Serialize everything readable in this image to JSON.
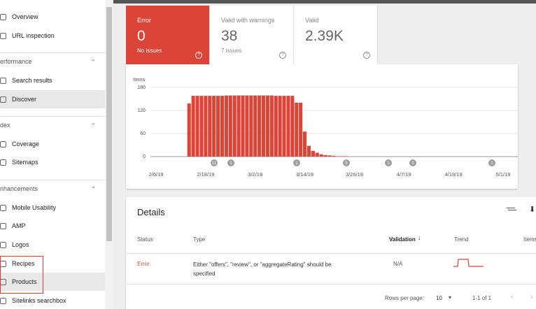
{
  "sidebar": {
    "top": [
      "Overview",
      "URL inspection"
    ],
    "sections": [
      {
        "title": "erformance",
        "items": [
          "Search results",
          "Discover"
        ]
      },
      {
        "title": "dex",
        "items": [
          "Coverage",
          "Sitemaps"
        ]
      },
      {
        "title": "nhancements",
        "items": [
          "Mobile Usability",
          "AMP",
          "Logos",
          "Recipes",
          "Products",
          "Sitelinks searchbox"
        ]
      }
    ]
  },
  "summary": [
    {
      "label": "Error",
      "value": "0",
      "note": "No issues"
    },
    {
      "label": "Valid with warnings",
      "value": "38",
      "note": "7 issues"
    },
    {
      "label": "Valid",
      "value": "2.39K"
    }
  ],
  "chart_data": {
    "type": "bar",
    "y_label": "Items",
    "color": "#db4437",
    "x": [
      "2/14/19",
      "2/15/19",
      "2/16/19",
      "2/17/19",
      "2/18/19",
      "2/19/19",
      "2/20/19",
      "2/21/19",
      "2/22/19",
      "2/23/19",
      "2/24/19",
      "2/25/19",
      "2/26/19",
      "2/27/19",
      "2/28/19",
      "3/1/19",
      "3/2/19",
      "3/3/19",
      "3/4/19",
      "3/5/19",
      "3/6/19",
      "3/7/19",
      "3/8/19",
      "3/9/19",
      "3/10/19",
      "3/11/19",
      "3/12/19",
      "3/13/19",
      "3/14/19",
      "3/15/19",
      "3/16/19",
      "3/17/19",
      "3/18/19",
      "3/19/19",
      "3/20/19",
      "3/21/19",
      "3/22/19",
      "3/23/19",
      "3/24/19"
    ],
    "values": [
      138,
      158,
      158,
      158,
      158,
      158,
      158,
      158,
      158,
      159,
      159,
      159,
      159,
      159,
      159,
      159,
      159,
      159,
      159,
      159,
      159,
      158,
      158,
      158,
      158,
      158,
      140,
      140,
      65,
      28,
      15,
      10,
      6,
      4,
      3,
      2,
      1,
      1,
      1
    ],
    "xlim": [
      "2/6/19",
      "5/1/19"
    ],
    "xticks": [
      "2/6/19",
      "2/18/19",
      "3/2/19",
      "3/14/19",
      "3/26/19",
      "4/7/19",
      "4/19/19",
      "5/1/19"
    ],
    "ylim": [
      0,
      180
    ],
    "yticks": [
      0,
      60,
      120,
      180
    ],
    "grid": true,
    "event_markers": [
      "11",
      "1",
      "1",
      "5",
      "1",
      "1",
      "1"
    ]
  },
  "details": {
    "title": "Details",
    "columns": [
      "Status",
      "Type",
      "Validation",
      "Trend",
      "Items"
    ],
    "rows": [
      [
        "Error",
        "Either \"offers\", \"review\", or \"aggregateRating\" should be specified",
        "N/A"
      ]
    ],
    "footer": {
      "rows_per_page_label": "Rows per page:",
      "rows_per_page": "10",
      "range": "1-1 of 1"
    }
  }
}
